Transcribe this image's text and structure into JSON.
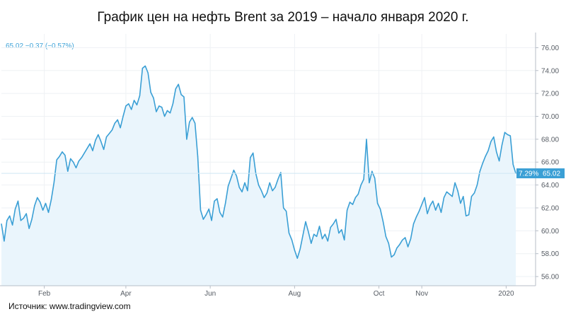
{
  "title": "График цен на нефть Brent за 2019 – начало января 2020 г.",
  "source": "Источник: www.tradingview.com",
  "price_info": "65.02  −0.37 (−0.57%)",
  "current_badge": {
    "percent": "7.29%",
    "price": "65.02"
  },
  "colors": {
    "line": "#3a9fd5",
    "fill": "#eaf5fc",
    "axis": "#b7bec7",
    "text": "#555b63",
    "badge": "#3a9fd5"
  },
  "chart_data": {
    "type": "area",
    "title": "График цен на нефть Brent за 2019 – начало января 2020 г.",
    "xlabel": "",
    "ylabel": "",
    "ylim": [
      55.2,
      77.2
    ],
    "y_ticks": [
      "56.00",
      "58.00",
      "60.00",
      "62.00",
      "64.00",
      "66.00",
      "68.00",
      "70.00",
      "72.00",
      "74.00",
      "76.00"
    ],
    "x_ticks": [
      {
        "label": "Feb",
        "day": 32
      },
      {
        "label": "Apr",
        "day": 91
      },
      {
        "label": "Jun",
        "day": 152
      },
      {
        "label": "Aug",
        "day": 213
      },
      {
        "label": "Oct",
        "day": 274
      },
      {
        "label": "Nov",
        "day": 305
      },
      {
        "label": "2020",
        "day": 366
      }
    ],
    "x_range": [
      1,
      375
    ],
    "series": [
      {
        "name": "Brent",
        "points": [
          [
            1,
            60.6
          ],
          [
            3,
            59.1
          ],
          [
            5,
            60.9
          ],
          [
            7,
            61.3
          ],
          [
            9,
            60.5
          ],
          [
            11,
            61.9
          ],
          [
            13,
            62.6
          ],
          [
            15,
            60.9
          ],
          [
            17,
            61.1
          ],
          [
            19,
            61.5
          ],
          [
            21,
            60.2
          ],
          [
            23,
            61.0
          ],
          [
            25,
            62.2
          ],
          [
            27,
            62.9
          ],
          [
            29,
            62.5
          ],
          [
            31,
            61.8
          ],
          [
            33,
            62.4
          ],
          [
            35,
            61.6
          ],
          [
            37,
            62.7
          ],
          [
            39,
            64.2
          ],
          [
            41,
            66.2
          ],
          [
            43,
            66.5
          ],
          [
            45,
            66.9
          ],
          [
            47,
            66.6
          ],
          [
            49,
            65.2
          ],
          [
            51,
            66.3
          ],
          [
            53,
            66.0
          ],
          [
            55,
            65.5
          ],
          [
            57,
            66.1
          ],
          [
            59,
            66.4
          ],
          [
            61,
            66.8
          ],
          [
            63,
            67.2
          ],
          [
            65,
            67.6
          ],
          [
            67,
            67.0
          ],
          [
            69,
            67.9
          ],
          [
            71,
            68.4
          ],
          [
            73,
            67.8
          ],
          [
            75,
            67.1
          ],
          [
            77,
            68.2
          ],
          [
            79,
            68.5
          ],
          [
            81,
            68.8
          ],
          [
            83,
            69.4
          ],
          [
            85,
            69.7
          ],
          [
            87,
            69.0
          ],
          [
            89,
            70.0
          ],
          [
            91,
            70.9
          ],
          [
            93,
            71.1
          ],
          [
            95,
            70.6
          ],
          [
            97,
            71.4
          ],
          [
            99,
            71.0
          ],
          [
            101,
            71.8
          ],
          [
            103,
            74.2
          ],
          [
            105,
            74.4
          ],
          [
            107,
            73.8
          ],
          [
            109,
            72.1
          ],
          [
            111,
            71.6
          ],
          [
            113,
            70.4
          ],
          [
            115,
            70.9
          ],
          [
            117,
            70.8
          ],
          [
            119,
            70.0
          ],
          [
            121,
            70.5
          ],
          [
            123,
            70.3
          ],
          [
            125,
            71.1
          ],
          [
            127,
            72.4
          ],
          [
            129,
            72.8
          ],
          [
            131,
            71.9
          ],
          [
            133,
            71.7
          ],
          [
            135,
            68.0
          ],
          [
            137,
            69.5
          ],
          [
            139,
            69.9
          ],
          [
            141,
            69.4
          ],
          [
            143,
            66.5
          ],
          [
            145,
            61.8
          ],
          [
            147,
            61.0
          ],
          [
            149,
            61.4
          ],
          [
            151,
            61.9
          ],
          [
            153,
            60.9
          ],
          [
            155,
            62.6
          ],
          [
            157,
            62.8
          ],
          [
            159,
            61.6
          ],
          [
            161,
            61.2
          ],
          [
            163,
            62.4
          ],
          [
            165,
            63.9
          ],
          [
            167,
            64.6
          ],
          [
            169,
            65.3
          ],
          [
            171,
            64.8
          ],
          [
            173,
            63.8
          ],
          [
            175,
            63.4
          ],
          [
            177,
            64.2
          ],
          [
            179,
            63.5
          ],
          [
            181,
            66.4
          ],
          [
            183,
            66.8
          ],
          [
            185,
            65.0
          ],
          [
            187,
            64.0
          ],
          [
            189,
            63.5
          ],
          [
            191,
            62.9
          ],
          [
            193,
            63.3
          ],
          [
            195,
            64.2
          ],
          [
            197,
            63.5
          ],
          [
            199,
            63.8
          ],
          [
            201,
            64.5
          ],
          [
            203,
            65.1
          ],
          [
            205,
            62.0
          ],
          [
            207,
            61.7
          ],
          [
            209,
            59.8
          ],
          [
            211,
            59.2
          ],
          [
            213,
            58.3
          ],
          [
            215,
            57.6
          ],
          [
            217,
            58.4
          ],
          [
            219,
            59.6
          ],
          [
            221,
            60.8
          ],
          [
            223,
            59.9
          ],
          [
            225,
            58.9
          ],
          [
            227,
            59.7
          ],
          [
            229,
            59.5
          ],
          [
            231,
            60.4
          ],
          [
            233,
            59.3
          ],
          [
            235,
            59.7
          ],
          [
            237,
            59.1
          ],
          [
            239,
            60.3
          ],
          [
            241,
            60.6
          ],
          [
            243,
            61.0
          ],
          [
            245,
            59.8
          ],
          [
            247,
            60.1
          ],
          [
            249,
            59.2
          ],
          [
            251,
            61.8
          ],
          [
            253,
            62.5
          ],
          [
            255,
            62.3
          ],
          [
            257,
            62.9
          ],
          [
            259,
            63.2
          ],
          [
            261,
            64.0
          ],
          [
            263,
            64.5
          ],
          [
            265,
            68.0
          ],
          [
            267,
            64.2
          ],
          [
            269,
            65.2
          ],
          [
            271,
            64.6
          ],
          [
            273,
            62.4
          ],
          [
            275,
            61.9
          ],
          [
            277,
            60.8
          ],
          [
            279,
            59.5
          ],
          [
            281,
            58.9
          ],
          [
            283,
            57.7
          ],
          [
            285,
            57.9
          ],
          [
            287,
            58.5
          ],
          [
            289,
            58.8
          ],
          [
            291,
            59.2
          ],
          [
            293,
            59.4
          ],
          [
            295,
            58.6
          ],
          [
            297,
            59.3
          ],
          [
            299,
            60.6
          ],
          [
            301,
            61.2
          ],
          [
            303,
            61.7
          ],
          [
            305,
            62.3
          ],
          [
            307,
            62.9
          ],
          [
            309,
            61.5
          ],
          [
            311,
            62.2
          ],
          [
            313,
            62.6
          ],
          [
            315,
            61.8
          ],
          [
            317,
            62.4
          ],
          [
            319,
            61.6
          ],
          [
            321,
            62.9
          ],
          [
            323,
            63.4
          ],
          [
            325,
            63.2
          ],
          [
            327,
            63.0
          ],
          [
            329,
            64.2
          ],
          [
            331,
            63.5
          ],
          [
            333,
            62.4
          ],
          [
            335,
            63.0
          ],
          [
            337,
            61.3
          ],
          [
            339,
            61.4
          ],
          [
            341,
            63.0
          ],
          [
            343,
            63.3
          ],
          [
            345,
            64.0
          ],
          [
            347,
            65.2
          ],
          [
            349,
            65.9
          ],
          [
            351,
            66.5
          ],
          [
            353,
            67.0
          ],
          [
            355,
            67.8
          ],
          [
            357,
            68.2
          ],
          [
            359,
            66.9
          ],
          [
            361,
            66.1
          ],
          [
            363,
            67.5
          ],
          [
            365,
            68.6
          ],
          [
            367,
            68.4
          ],
          [
            369,
            68.3
          ],
          [
            371,
            65.8
          ],
          [
            373,
            65.0
          ]
        ]
      }
    ]
  }
}
